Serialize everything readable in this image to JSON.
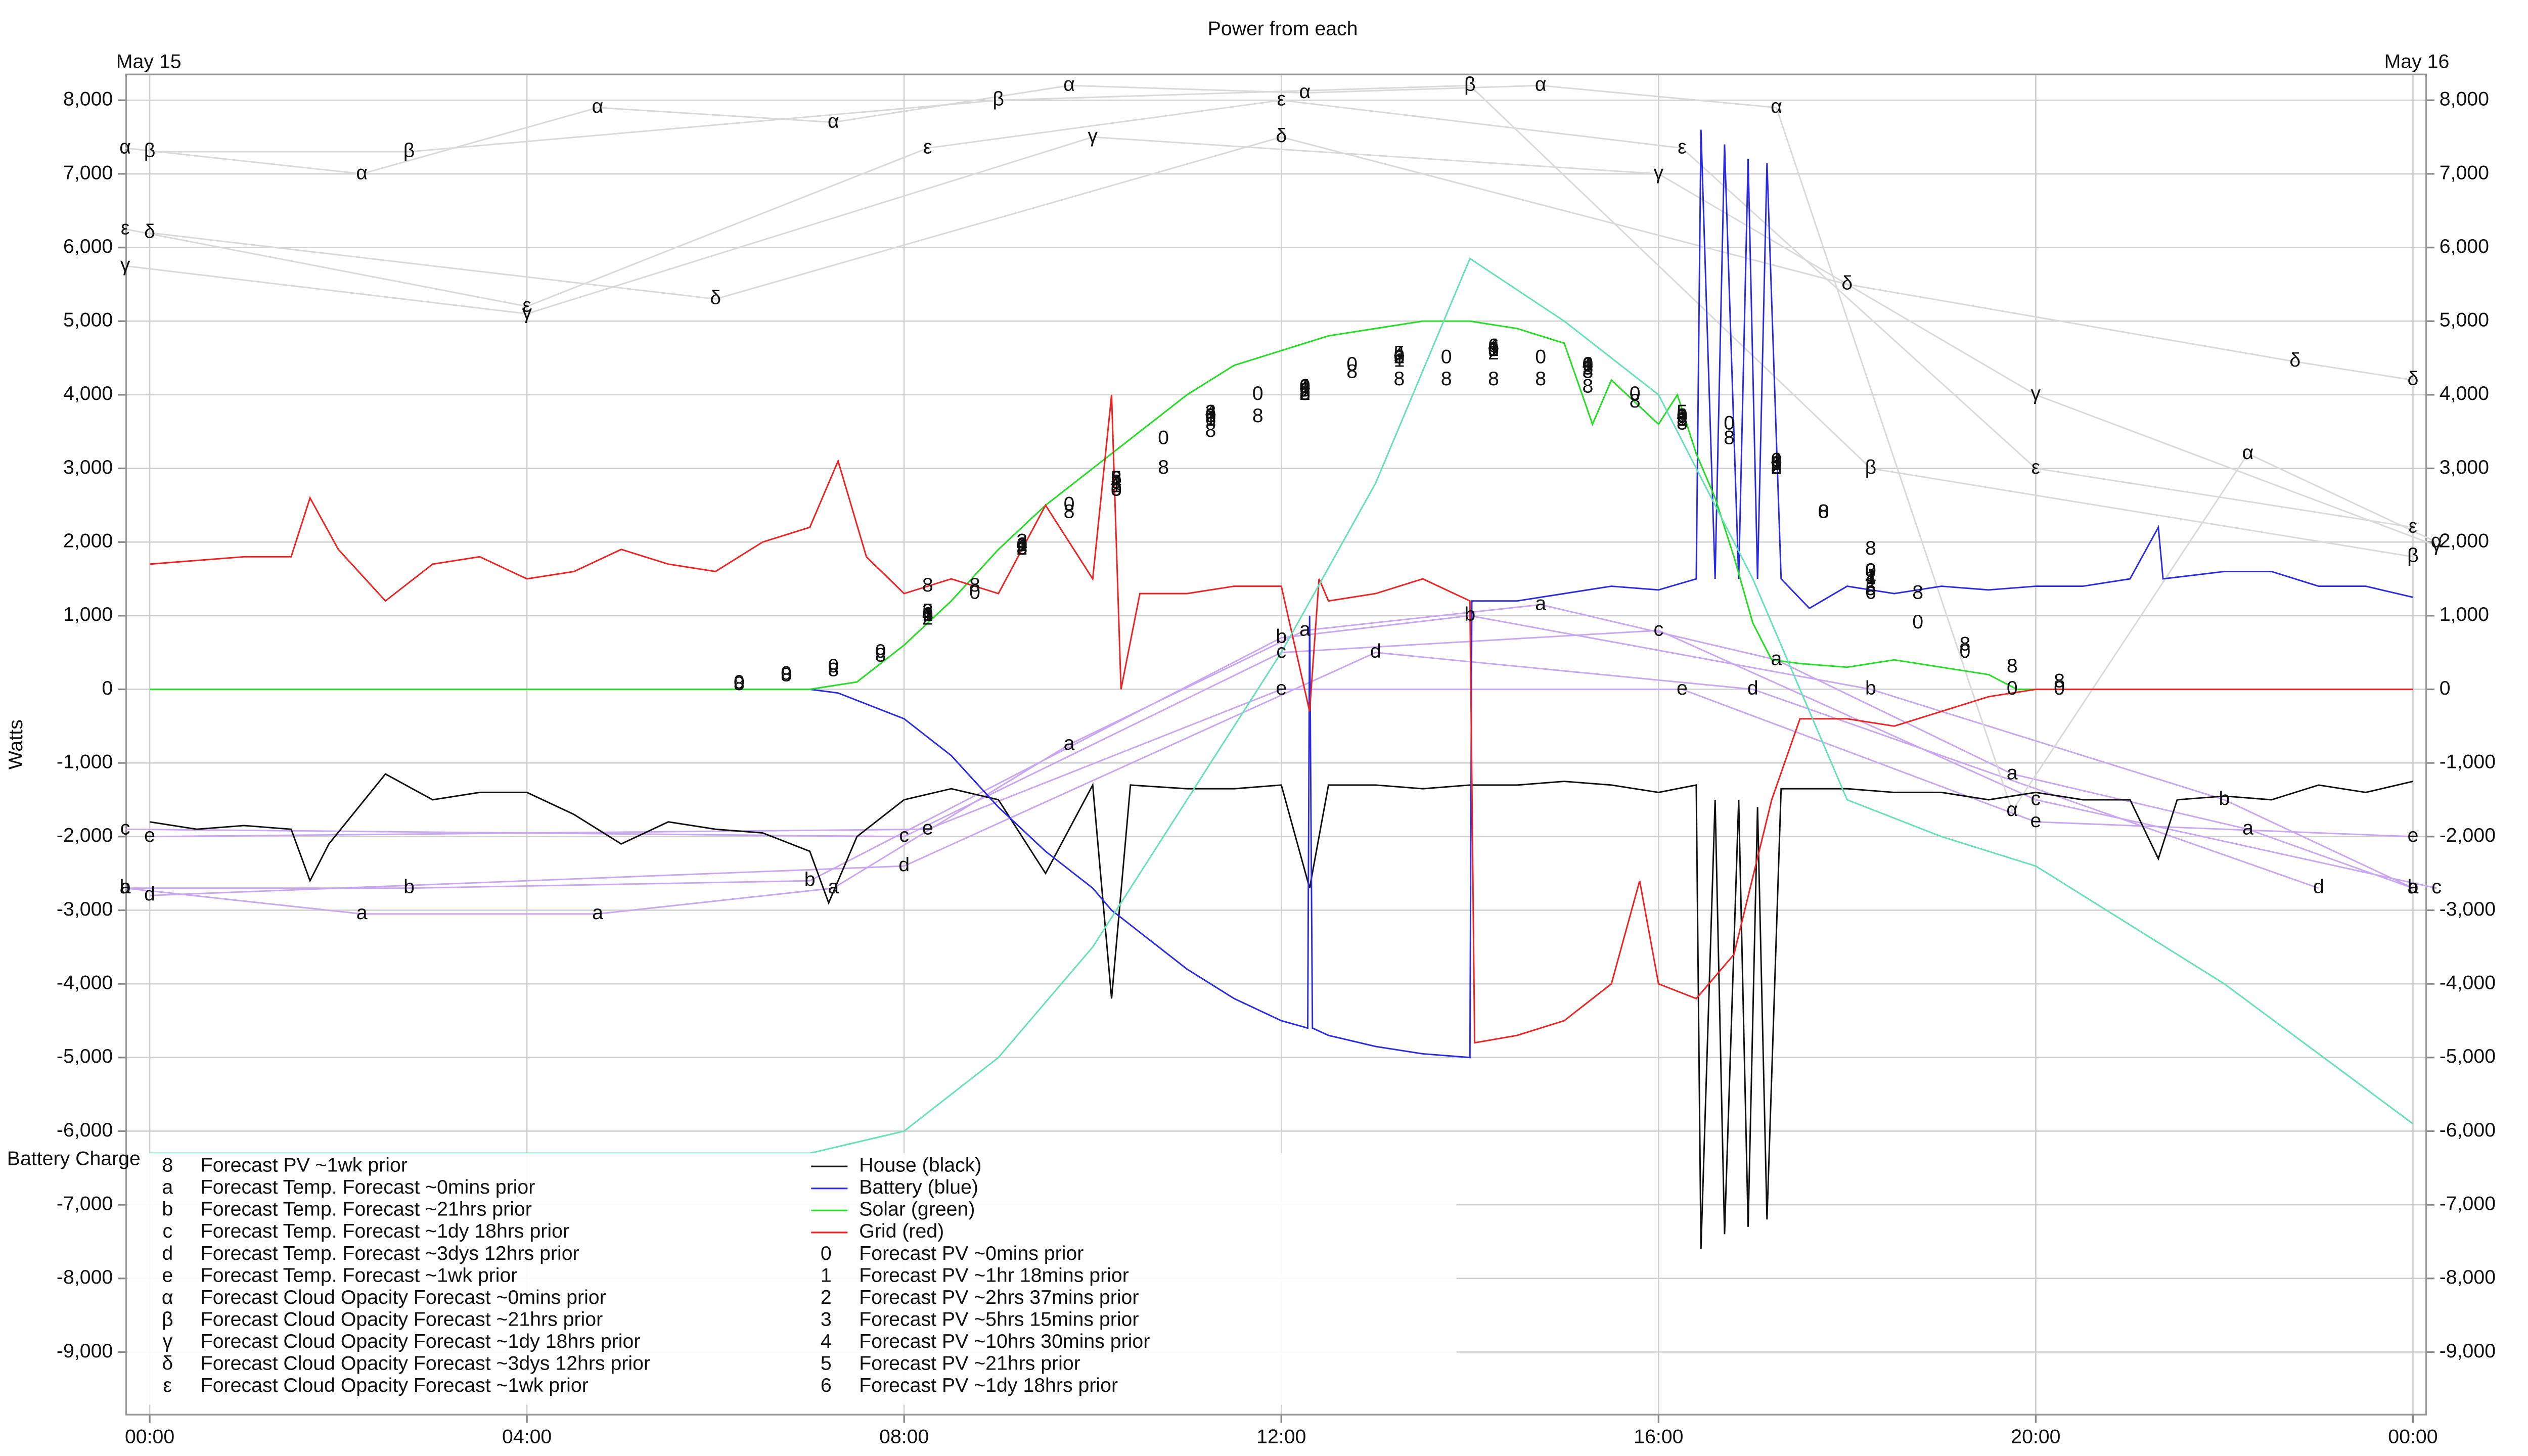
{
  "chart_data": {
    "type": "line",
    "title": "Power from each",
    "date_start": "May 15",
    "date_end": "May 16",
    "y_label": "Watts",
    "grid": true,
    "xlim": [
      -0.25,
      24.14
    ],
    "ylim": [
      -9850,
      8350
    ],
    "xticks": [
      {
        "value": 0,
        "label": "00:00"
      },
      {
        "value": 4,
        "label": "04:00"
      },
      {
        "value": 8,
        "label": "08:00"
      },
      {
        "value": 12,
        "label": "12:00"
      },
      {
        "value": 16,
        "label": "16:00"
      },
      {
        "value": 20,
        "label": "20:00"
      },
      {
        "value": 24,
        "label": "00:00"
      }
    ],
    "yticks": [
      {
        "value": -9000,
        "label": "-9,000"
      },
      {
        "value": -8000,
        "label": "-8,000"
      },
      {
        "value": -7000,
        "label": "-7,000"
      },
      {
        "value": -6000,
        "label": "-6,000"
      },
      {
        "value": -5000,
        "label": "-5,000"
      },
      {
        "value": -4000,
        "label": "-4,000"
      },
      {
        "value": -3000,
        "label": "-3,000"
      },
      {
        "value": -2000,
        "label": "-2,000"
      },
      {
        "value": -1000,
        "label": "-1,000"
      },
      0,
      {
        "value": 1000,
        "label": "1,000"
      },
      {
        "value": 2000,
        "label": "2,000"
      },
      {
        "value": 3000,
        "label": "3,000"
      },
      {
        "value": 4000,
        "label": "4,000"
      },
      {
        "value": 5000,
        "label": "5,000"
      },
      {
        "value": 6000,
        "label": "6,000"
      },
      {
        "value": 7000,
        "label": "7,000"
      },
      {
        "value": 8000,
        "label": "8,000"
      }
    ],
    "series": [
      {
        "name": "Forecast PV ~1wk prior",
        "marker": "8",
        "color": "#000000",
        "line": false,
        "x": [
          6.25,
          6.75,
          7.25,
          7.75,
          8.25,
          8.75,
          9.25,
          9.75,
          10.25,
          10.75,
          11.25,
          11.75,
          12.25,
          12.75,
          13.25,
          13.75,
          14.25,
          14.75,
          15.25,
          15.75,
          16.25,
          16.75,
          17.25,
          17.75,
          18.25,
          18.75,
          19.25,
          19.75,
          20.25
        ],
        "values": [
          60,
          180,
          250,
          450,
          1400,
          1400,
          1900,
          2400,
          2700,
          3000,
          3500,
          3700,
          4000,
          4300,
          4200,
          4200,
          4200,
          4200,
          4100,
          3900,
          3600,
          3400,
          3000,
          2400,
          1900,
          1300,
          600,
          300,
          100
        ]
      },
      {
        "name": "Forecast Temp. Forecast ~0mins prior",
        "marker": "a",
        "color": "#c9a6f2",
        "line": true,
        "x": [
          -0.26,
          2.25,
          4.75,
          7.25,
          9.75,
          12.25,
          14.75,
          17.25,
          19.75,
          22.25,
          24.0
        ],
        "values": [
          -2700,
          -3050,
          -3050,
          -2700,
          -750,
          800,
          1150,
          400,
          -1150,
          -1900,
          -2700
        ]
      },
      {
        "name": "Forecast Temp. Forecast ~21hrs prior",
        "marker": "b",
        "color": "#c9a6f2",
        "line": true,
        "x": [
          -0.26,
          2.75,
          7.0,
          12.0,
          14.0,
          18.25,
          22.0,
          24.0
        ],
        "values": [
          -2700,
          -2700,
          -2600,
          700,
          1000,
          0,
          -1500,
          -2700
        ]
      },
      {
        "name": "Forecast Temp. Forecast ~1dy 18hrs prior",
        "marker": "c",
        "color": "#c9a6f2",
        "line": true,
        "x": [
          -0.26,
          8.0,
          12.0,
          16.0,
          20.0,
          24.25
        ],
        "values": [
          -1900,
          -2000,
          500,
          800,
          -1500,
          -2700
        ]
      },
      {
        "name": "Forecast Temp. Forecast ~3dys 12hrs prior",
        "marker": "d",
        "color": "#c9a6f2",
        "line": true,
        "x": [
          0.0,
          8.0,
          13.0,
          17.0,
          23.0
        ],
        "values": [
          -2800,
          -2400,
          500,
          0,
          -2700
        ]
      },
      {
        "name": "Forecast Temp. Forecast ~1wk prior",
        "marker": "e",
        "color": "#c9a6f2",
        "line": true,
        "x": [
          0.0,
          8.25,
          12.0,
          16.25,
          20.0,
          24.0
        ],
        "values": [
          -2000,
          -1900,
          0,
          0,
          -1800,
          -2000
        ]
      },
      {
        "name": "Forecast Cloud Opacity Forecast ~0mins prior",
        "marker": "α",
        "color": "#d9d9d9",
        "line": true,
        "x": [
          -0.26,
          2.25,
          4.75,
          7.25,
          9.75,
          12.25,
          14.75,
          17.25,
          19.75,
          22.25,
          24.25
        ],
        "values": [
          7350,
          7000,
          7900,
          7700,
          8200,
          8100,
          8200,
          7900,
          -1650,
          3200,
          2000
        ]
      },
      {
        "name": "Forecast Cloud Opacity Forecast ~21hrs prior",
        "marker": "β",
        "color": "#d9d9d9",
        "line": true,
        "x": [
          0.0,
          2.75,
          9.0,
          14.0,
          18.25,
          24.0
        ],
        "values": [
          7300,
          7300,
          8000,
          8200,
          3000,
          1800
        ]
      },
      {
        "name": "Forecast Cloud Opacity Forecast ~1dy 18hrs prior",
        "marker": "γ",
        "color": "#d9d9d9",
        "line": true,
        "x": [
          -0.26,
          4.0,
          10.0,
          16.0,
          20.0,
          24.25
        ],
        "values": [
          5750,
          5100,
          7500,
          7000,
          4000,
          1950
        ]
      },
      {
        "name": "Forecast Cloud Opacity Forecast ~3dys 12hrs prior",
        "marker": "δ",
        "color": "#d9d9d9",
        "line": true,
        "x": [
          0.0,
          6.0,
          12.0,
          18.0,
          22.75,
          24.0
        ],
        "values": [
          6200,
          5300,
          7500,
          5500,
          4450,
          4200
        ]
      },
      {
        "name": "Forecast Cloud Opacity Forecast ~1wk prior",
        "marker": "ε",
        "color": "#d9d9d9",
        "line": true,
        "x": [
          -0.26,
          4.0,
          8.25,
          12.0,
          16.25,
          20.0,
          24.0
        ],
        "values": [
          6250,
          5200,
          7350,
          8000,
          7350,
          3000,
          2200
        ]
      },
      {
        "name": "House (black)",
        "color": "#111111",
        "line": true,
        "x": [
          0,
          0.5,
          1,
          1.5,
          1.7,
          1.9,
          2.5,
          3,
          3.5,
          4,
          4.5,
          5,
          5.5,
          6,
          6.5,
          7,
          7.2,
          7.5,
          8,
          8.5,
          9,
          9.5,
          10,
          10.2,
          10.4,
          11,
          11.5,
          12,
          12.3,
          12.5,
          13,
          13.5,
          14,
          14.5,
          15,
          15.5,
          16,
          16.4,
          16.45,
          16.6,
          16.7,
          16.85,
          16.95,
          17.05,
          17.15,
          17.3,
          18,
          18.5,
          19,
          19.5,
          20,
          20.5,
          21,
          21.3,
          21.5,
          22,
          22.5,
          23,
          23.5,
          24
        ],
        "values": [
          -1800,
          -1900,
          -1850,
          -1900,
          -2600,
          -2100,
          -1150,
          -1500,
          -1400,
          -1400,
          -1700,
          -2100,
          -1800,
          -1900,
          -1950,
          -2200,
          -2900,
          -2000,
          -1500,
          -1350,
          -1500,
          -2500,
          -1300,
          -4200,
          -1300,
          -1350,
          -1350,
          -1300,
          -2700,
          -1300,
          -1300,
          -1350,
          -1300,
          -1300,
          -1250,
          -1300,
          -1400,
          -1300,
          -7600,
          -1500,
          -7400,
          -1500,
          -7300,
          -1600,
          -7200,
          -1350,
          -1350,
          -1400,
          -1400,
          -1500,
          -1400,
          -1500,
          -1500,
          -2300,
          -1500,
          -1450,
          -1500,
          -1300,
          -1400,
          -1250
        ]
      },
      {
        "name": "Battery (blue)",
        "color": "#2a2ae0",
        "line": true,
        "x": [
          0,
          6,
          7,
          7.3,
          8,
          8.5,
          9,
          9.5,
          10,
          10.2,
          10.5,
          11,
          11.5,
          12,
          12.28,
          12.3,
          12.33,
          12.5,
          13,
          13.5,
          14,
          14.02,
          14.5,
          15,
          15.5,
          16,
          16.4,
          16.45,
          16.6,
          16.7,
          16.85,
          16.95,
          17.05,
          17.15,
          17.3,
          17.6,
          18,
          18.5,
          19,
          19.5,
          20,
          20.5,
          21,
          21.3,
          21.35,
          22,
          22.5,
          23,
          23.5,
          24
        ],
        "values": [
          0,
          0,
          0,
          -50,
          -400,
          -900,
          -1600,
          -2200,
          -2700,
          -3000,
          -3300,
          -3800,
          -4200,
          -4500,
          -4600,
          1000,
          -4600,
          -4700,
          -4850,
          -4950,
          -5000,
          1200,
          1200,
          1300,
          1400,
          1350,
          1500,
          7600,
          1500,
          7400,
          1500,
          7200,
          1500,
          7150,
          1500,
          1100,
          1400,
          1300,
          1400,
          1350,
          1400,
          1400,
          1500,
          2200,
          1500,
          1600,
          1600,
          1400,
          1400,
          1250
        ]
      },
      {
        "name": "Solar (green)",
        "color": "#22dd22",
        "line": true,
        "x": [
          0,
          7,
          7.5,
          8,
          8.5,
          9,
          9.5,
          10,
          10.5,
          11,
          11.5,
          12,
          12.5,
          13,
          13.5,
          14,
          14.5,
          15,
          15.3,
          15.5,
          16,
          16.2,
          16.4,
          16.6,
          16.8,
          17,
          17.2,
          17.5,
          18,
          18.5,
          19,
          19.5,
          19.8,
          24
        ],
        "values": [
          0,
          0,
          100,
          600,
          1200,
          1900,
          2500,
          3000,
          3500,
          4000,
          4400,
          4600,
          4800,
          4900,
          5000,
          5000,
          4900,
          4700,
          3600,
          4200,
          3600,
          4000,
          3200,
          2600,
          1800,
          900,
          400,
          350,
          300,
          400,
          300,
          200,
          0,
          0
        ]
      },
      {
        "name": "Grid (red)",
        "color": "#ee2222",
        "line": true,
        "x": [
          0,
          1,
          1.5,
          1.7,
          2,
          2.5,
          3,
          3.5,
          4,
          4.5,
          5,
          5.5,
          6,
          6.5,
          7,
          7.3,
          7.6,
          8,
          8.5,
          9,
          9.5,
          10,
          10.2,
          10.3,
          10.5,
          11,
          11.5,
          12,
          12.3,
          12.4,
          12.5,
          13,
          13.5,
          14,
          14.05,
          14.5,
          15,
          15.5,
          15.8,
          16,
          16.4,
          16.8,
          17.2,
          17.5,
          18,
          18.5,
          19,
          19.5,
          20,
          24
        ],
        "values": [
          1700,
          1800,
          1800,
          2600,
          1900,
          1200,
          1700,
          1800,
          1500,
          1600,
          1900,
          1700,
          1600,
          2000,
          2200,
          3100,
          1800,
          1300,
          1500,
          1300,
          2500,
          1500,
          4000,
          0,
          1300,
          1300,
          1400,
          1400,
          -300,
          1500,
          1200,
          1300,
          1500,
          1200,
          -4800,
          -4700,
          -4500,
          -4000,
          -2600,
          -4000,
          -4200,
          -3600,
          -1500,
          -400,
          -400,
          -500,
          -300,
          -100,
          0,
          0
        ]
      },
      {
        "name": "Forecast PV ~0mins prior",
        "marker": "0",
        "color": "#000000",
        "line": false,
        "x": [
          6.25,
          6.75,
          7.25,
          7.75,
          8.25,
          8.75,
          9.25,
          9.75,
          10.25,
          10.75,
          11.25,
          11.75,
          12.25,
          12.75,
          13.25,
          13.75,
          14.25,
          14.75,
          15.25,
          15.75,
          16.25,
          16.75,
          17.25,
          17.75,
          18.25,
          18.75,
          19.25,
          19.75,
          20.25
        ],
        "values": [
          80,
          200,
          300,
          500,
          1000,
          1300,
          1950,
          2500,
          2700,
          3400,
          3700,
          4000,
          4100,
          4400,
          4500,
          4500,
          4600,
          4500,
          4400,
          4000,
          3700,
          3600,
          3100,
          2400,
          1600,
          900,
          500,
          0,
          0
        ]
      },
      {
        "name": "Forecast PV ~1hr 18mins prior",
        "marker": "1",
        "color": "#000000",
        "line": false,
        "x": [
          8.25,
          9.25,
          10.25,
          11.25,
          12.25,
          13.25,
          14.25,
          15.25,
          16.25,
          17.25,
          18.25
        ],
        "values": [
          1000,
          1950,
          2750,
          3650,
          4100,
          4450,
          4600,
          4400,
          3650,
          3050,
          1500
        ]
      },
      {
        "name": "Forecast PV ~2hrs 37mins prior",
        "marker": "2",
        "color": "#000000",
        "line": false,
        "x": [
          8.25,
          9.25,
          10.25,
          11.25,
          12.25,
          13.25,
          14.25,
          15.25,
          16.25,
          17.25,
          18.25
        ],
        "values": [
          950,
          1900,
          2800,
          3700,
          4000,
          4500,
          4550,
          4350,
          3700,
          3000,
          1400
        ]
      },
      {
        "name": "Forecast PV ~5hrs 15mins prior",
        "marker": "3",
        "color": "#000000",
        "line": false,
        "x": [
          8.25,
          9.25,
          10.25,
          11.25,
          12.25,
          13.25,
          14.25,
          15.25,
          16.25,
          17.25,
          18.25
        ],
        "values": [
          1050,
          2000,
          2850,
          3750,
          4050,
          4500,
          4600,
          4300,
          3650,
          3000,
          1600
        ]
      },
      {
        "name": "Forecast PV ~10hrs 30mins prior",
        "marker": "4",
        "color": "#000000",
        "line": false,
        "x": [
          8.25,
          9.25,
          10.25,
          11.25,
          12.25,
          13.25,
          14.25,
          15.25,
          16.25,
          17.25,
          18.25
        ],
        "values": [
          1000,
          1950,
          2800,
          3750,
          4100,
          4550,
          4650,
          4400,
          3700,
          3100,
          1500
        ]
      },
      {
        "name": "Forecast PV ~21hrs prior",
        "marker": "5",
        "color": "#000000",
        "line": false,
        "x": [
          8.25,
          9.25,
          10.25,
          11.25,
          12.25,
          13.25,
          14.25,
          15.25,
          16.25,
          17.25,
          18.25
        ],
        "values": [
          1050,
          1900,
          2850,
          3700,
          4000,
          4550,
          4600,
          4350,
          3750,
          3050,
          1350
        ]
      },
      {
        "name": "Forecast PV ~1dy 18hrs prior",
        "marker": "6",
        "color": "#000000",
        "line": false,
        "x": [
          8.25,
          9.25,
          10.25,
          11.25,
          12.25,
          13.25,
          14.25,
          15.25,
          16.25,
          17.25,
          18.25
        ],
        "values": [
          1000,
          1950,
          2850,
          3650,
          4050,
          4500,
          4650,
          4400,
          3700,
          3050,
          1300
        ]
      },
      {
        "name": "Battery Charge",
        "color": "#66e0b8",
        "line": true,
        "x": [
          0,
          7,
          8,
          9,
          10,
          11,
          12,
          13,
          14,
          15,
          16,
          17,
          18,
          19,
          20,
          22,
          24
        ],
        "values": [
          -6300,
          -6300,
          -6000,
          -5000,
          -3500,
          -1500,
          500,
          2800,
          5850,
          5000,
          4000,
          1500,
          -1500,
          -2000,
          -2400,
          -4000,
          -5900
        ]
      }
    ]
  }
}
